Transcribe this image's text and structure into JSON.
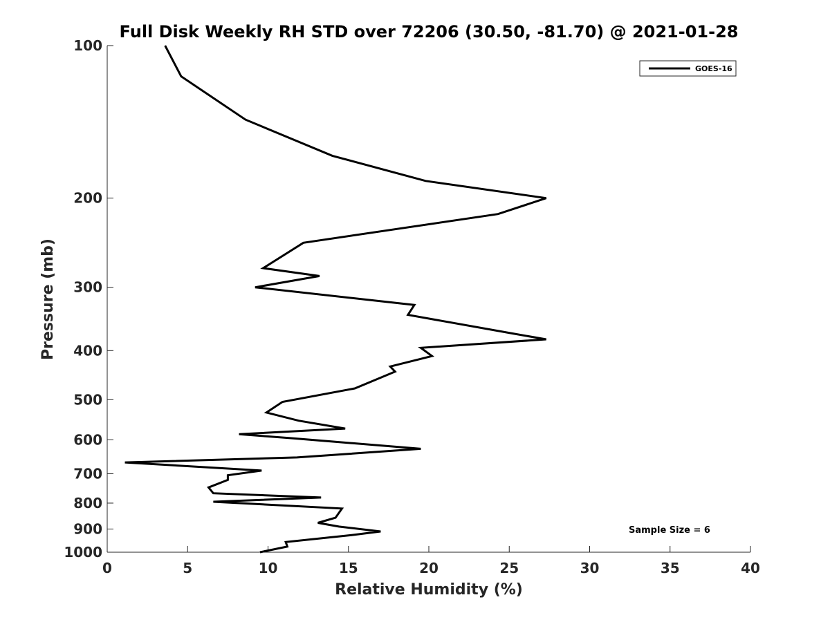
{
  "chart_data": {
    "type": "line",
    "title": "Full Disk Weekly RH STD over 72206 (30.50, -81.70) @ 2021-01-28",
    "xlabel": "Relative Humidity (%)",
    "ylabel": "Pressure (mb)",
    "xlim": [
      0,
      40
    ],
    "ylim": [
      1000,
      100
    ],
    "y_scale": "log",
    "y_reversed": true,
    "x_ticks": [
      0,
      5,
      10,
      15,
      20,
      25,
      30,
      35,
      40
    ],
    "x_tick_labels": [
      "0",
      "5",
      "10",
      "15",
      "20",
      "25",
      "30",
      "35",
      "40"
    ],
    "y_ticks": [
      100,
      200,
      300,
      400,
      500,
      600,
      700,
      800,
      900,
      1000
    ],
    "y_tick_labels": [
      "100",
      "200",
      "300",
      "400",
      "500",
      "600",
      "700",
      "800",
      "900",
      "1000"
    ],
    "grid": false,
    "legend_position": "top-right",
    "series": [
      {
        "name": "GOES-16",
        "color": "#000000",
        "x": [
          3.6,
          4.6,
          8.6,
          14.0,
          19.8,
          27.3,
          24.3,
          12.2,
          9.7,
          13.2,
          9.2,
          19.1,
          18.7,
          25.2,
          27.3,
          19.5,
          20.2,
          17.6,
          17.9,
          15.4,
          10.9,
          9.9,
          11.9,
          14.8,
          8.2,
          11.3,
          19.5,
          11.8,
          1.1,
          9.6,
          7.5,
          7.5,
          6.3,
          6.6,
          13.3,
          6.6,
          14.6,
          14.2,
          13.1,
          14.4,
          17.0,
          15.2,
          11.1,
          11.2,
          9.5
        ],
        "y": [
          100,
          115,
          140,
          165,
          185,
          200,
          215,
          245,
          275,
          285,
          300,
          325,
          340,
          370,
          380,
          395,
          410,
          430,
          440,
          475,
          505,
          530,
          550,
          570,
          585,
          595,
          625,
          650,
          665,
          690,
          705,
          720,
          745,
          765,
          780,
          795,
          820,
          855,
          875,
          890,
          910,
          925,
          955,
          975,
          1000
        ]
      }
    ],
    "annotations": [
      {
        "text": "Sample Size = 6",
        "x": 35,
        "pressure": 900
      }
    ]
  },
  "legend": {
    "entries": [
      {
        "label": "GOES-16",
        "color": "#000000"
      }
    ]
  },
  "annotation": {
    "sample_size": "Sample Size = 6"
  }
}
